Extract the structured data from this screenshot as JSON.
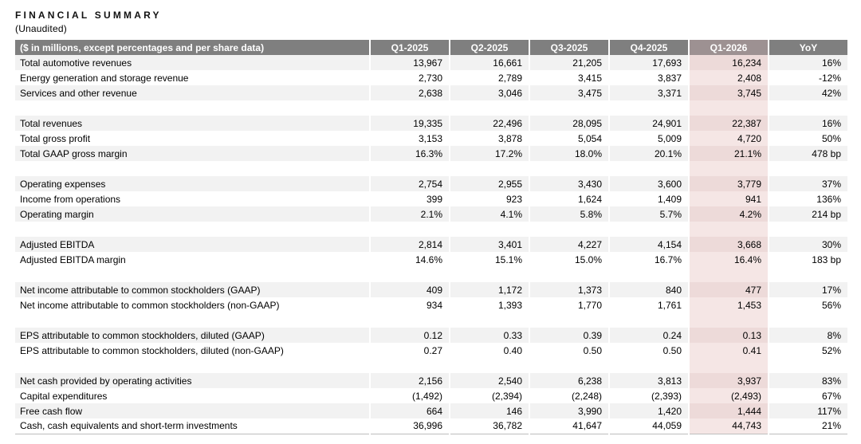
{
  "page": {
    "title": "FINANCIAL SUMMARY",
    "subtitle": "(Unaudited)"
  },
  "table": {
    "header": {
      "label": "($ in millions, except percentages and per share data)",
      "columns": [
        "Q1-2025",
        "Q2-2025",
        "Q3-2025",
        "Q4-2025",
        "Q1-2026",
        "YoY"
      ]
    },
    "highlight_column": "Q1-2026",
    "colors": {
      "header_bg": "#7f7f7f",
      "header_highlight_bg": "#9d9192",
      "row_shaded_bg": "#f2f2f2",
      "row_plain_bg": "#ffffff",
      "highlight_shaded_bg": "#eddad9",
      "highlight_plain_bg": "#f5e6e5"
    },
    "sections": [
      {
        "rows": [
          {
            "label": "Total automotive revenues",
            "values": [
              "13,967",
              "16,661",
              "21,205",
              "17,693",
              "16,234",
              "16%"
            ]
          },
          {
            "label": "Energy generation and storage revenue",
            "values": [
              "2,730",
              "2,789",
              "3,415",
              "3,837",
              "2,408",
              "-12%"
            ]
          },
          {
            "label": "Services and other revenue",
            "values": [
              "2,638",
              "3,046",
              "3,475",
              "3,371",
              "3,745",
              "42%"
            ]
          }
        ]
      },
      {
        "rows": [
          {
            "label": "Total revenues",
            "values": [
              "19,335",
              "22,496",
              "28,095",
              "24,901",
              "22,387",
              "16%"
            ]
          },
          {
            "label": "Total gross profit",
            "values": [
              "3,153",
              "3,878",
              "5,054",
              "5,009",
              "4,720",
              "50%"
            ]
          },
          {
            "label": "Total GAAP gross margin",
            "values": [
              "16.3%",
              "17.2%",
              "18.0%",
              "20.1%",
              "21.1%",
              "478 bp"
            ]
          }
        ]
      },
      {
        "rows": [
          {
            "label": "Operating expenses",
            "values": [
              "2,754",
              "2,955",
              "3,430",
              "3,600",
              "3,779",
              "37%"
            ]
          },
          {
            "label": "Income from operations",
            "values": [
              "399",
              "923",
              "1,624",
              "1,409",
              "941",
              "136%"
            ]
          },
          {
            "label": "Operating margin",
            "values": [
              "2.1%",
              "4.1%",
              "5.8%",
              "5.7%",
              "4.2%",
              "214 bp"
            ]
          }
        ]
      },
      {
        "rows": [
          {
            "label": "Adjusted EBITDA",
            "values": [
              "2,814",
              "3,401",
              "4,227",
              "4,154",
              "3,668",
              "30%"
            ]
          },
          {
            "label": "Adjusted EBITDA margin",
            "values": [
              "14.6%",
              "15.1%",
              "15.0%",
              "16.7%",
              "16.4%",
              "183 bp"
            ]
          }
        ]
      },
      {
        "rows": [
          {
            "label": "Net income attributable to common stockholders (GAAP)",
            "values": [
              "409",
              "1,172",
              "1,373",
              "840",
              "477",
              "17%"
            ]
          },
          {
            "label": "Net income attributable to common stockholders (non-GAAP)",
            "values": [
              "934",
              "1,393",
              "1,770",
              "1,761",
              "1,453",
              "56%"
            ]
          }
        ]
      },
      {
        "rows": [
          {
            "label": "EPS attributable to common stockholders, diluted (GAAP)",
            "values": [
              "0.12",
              "0.33",
              "0.39",
              "0.24",
              "0.13",
              "8%"
            ]
          },
          {
            "label": "EPS attributable to common stockholders, diluted (non-GAAP)",
            "values": [
              "0.27",
              "0.40",
              "0.50",
              "0.50",
              "0.41",
              "52%"
            ]
          }
        ]
      },
      {
        "rows": [
          {
            "label": "Net cash provided by operating activities",
            "values": [
              "2,156",
              "2,540",
              "6,238",
              "3,813",
              "3,937",
              "83%"
            ]
          },
          {
            "label": "Capital expenditures",
            "values": [
              "(1,492)",
              "(2,394)",
              "(2,248)",
              "(2,393)",
              "(2,493)",
              "67%"
            ]
          },
          {
            "label": "Free cash flow",
            "values": [
              "664",
              "146",
              "3,990",
              "1,420",
              "1,444",
              "117%"
            ]
          },
          {
            "label": "Cash, cash equivalents and short-term investments",
            "values": [
              "36,996",
              "36,782",
              "41,647",
              "44,059",
              "44,743",
              "21%"
            ]
          }
        ]
      }
    ]
  }
}
